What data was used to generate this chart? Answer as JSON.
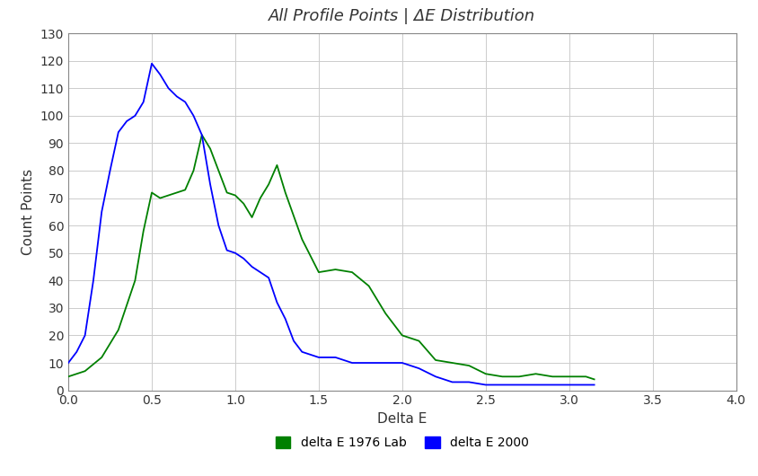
{
  "title": "All Profile Points | ΔE Distribution",
  "xlabel": "Delta E",
  "ylabel": "Count Points",
  "xlim": [
    0,
    4
  ],
  "ylim": [
    0,
    130
  ],
  "xticks": [
    0,
    0.5,
    1,
    1.5,
    2,
    2.5,
    3,
    3.5,
    4
  ],
  "yticks": [
    0,
    10,
    20,
    30,
    40,
    50,
    60,
    70,
    80,
    90,
    100,
    110,
    120,
    130
  ],
  "green_x": [
    0.0,
    0.05,
    0.1,
    0.2,
    0.3,
    0.4,
    0.45,
    0.5,
    0.55,
    0.6,
    0.65,
    0.7,
    0.75,
    0.8,
    0.85,
    0.9,
    0.95,
    1.0,
    1.05,
    1.1,
    1.15,
    1.2,
    1.25,
    1.3,
    1.4,
    1.5,
    1.6,
    1.7,
    1.8,
    1.9,
    2.0,
    2.1,
    2.2,
    2.3,
    2.4,
    2.5,
    2.6,
    2.7,
    2.8,
    2.9,
    3.0,
    3.1,
    3.15
  ],
  "green_y": [
    5,
    6,
    7,
    12,
    22,
    40,
    58,
    72,
    70,
    71,
    72,
    73,
    80,
    93,
    88,
    80,
    72,
    71,
    68,
    63,
    70,
    75,
    82,
    72,
    55,
    43,
    44,
    43,
    38,
    28,
    20,
    18,
    11,
    10,
    9,
    6,
    5,
    5,
    6,
    5,
    5,
    5,
    4
  ],
  "blue_x": [
    0.0,
    0.05,
    0.1,
    0.15,
    0.2,
    0.25,
    0.3,
    0.35,
    0.4,
    0.45,
    0.5,
    0.55,
    0.6,
    0.65,
    0.7,
    0.75,
    0.8,
    0.85,
    0.9,
    0.95,
    1.0,
    1.05,
    1.1,
    1.15,
    1.2,
    1.25,
    1.3,
    1.35,
    1.4,
    1.45,
    1.5,
    1.55,
    1.6,
    1.7,
    1.8,
    1.9,
    2.0,
    2.1,
    2.2,
    2.3,
    2.4,
    2.5,
    2.6,
    2.7,
    2.8,
    3.0,
    3.15
  ],
  "blue_y": [
    10,
    14,
    20,
    40,
    65,
    80,
    94,
    98,
    100,
    105,
    119,
    115,
    110,
    107,
    105,
    100,
    93,
    75,
    60,
    51,
    50,
    48,
    45,
    43,
    41,
    32,
    26,
    18,
    14,
    13,
    12,
    12,
    12,
    10,
    10,
    10,
    10,
    8,
    5,
    3,
    3,
    2,
    2,
    2,
    2,
    2,
    2
  ],
  "green_color": "#008000",
  "blue_color": "#0000ff",
  "bg_color": "#ffffff",
  "grid_color": "#cccccc",
  "title_color": "#333333",
  "legend_green": "delta E 1976 Lab",
  "legend_blue": "delta E 2000",
  "title_fontsize": 13,
  "label_fontsize": 11,
  "tick_fontsize": 10,
  "linewidth": 1.3
}
